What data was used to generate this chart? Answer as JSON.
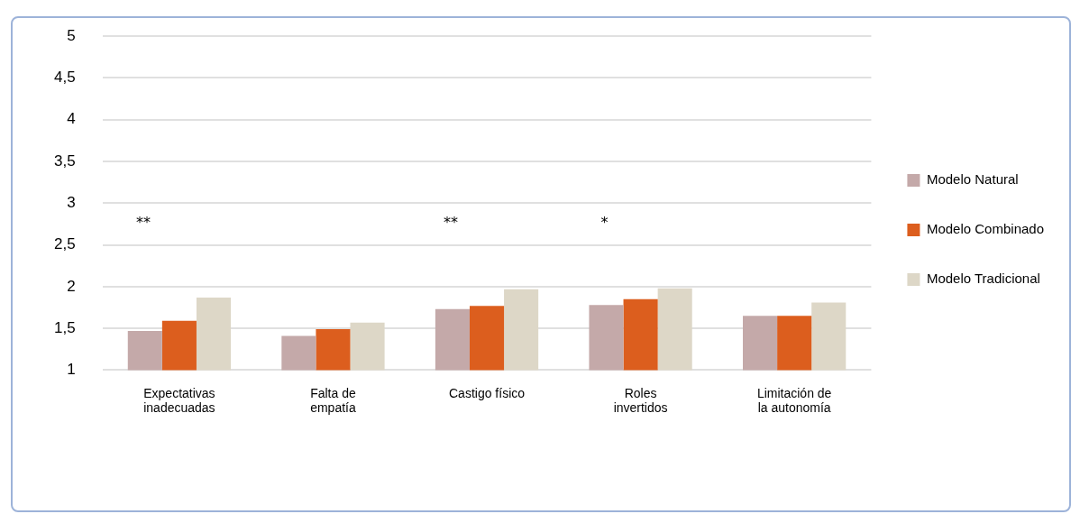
{
  "chart_data": {
    "type": "bar",
    "categories": [
      "Expectativas inadecuadas",
      "Falta de empatía",
      "Castigo físico",
      "Roles invertidos",
      "Limitación de la autonomía"
    ],
    "series": [
      {
        "name": "Modelo Natural",
        "color": "#c4a9a9",
        "values": [
          1.47,
          1.41,
          1.73,
          1.78,
          1.65
        ]
      },
      {
        "name": "Modelo Combinado",
        "color": "#dc5e1e",
        "values": [
          1.59,
          1.49,
          1.77,
          1.85,
          1.65
        ]
      },
      {
        "name": "Modelo Tradicional",
        "color": "#ddd7c7",
        "values": [
          1.87,
          1.57,
          1.97,
          1.98,
          1.81
        ]
      }
    ],
    "ylim": [
      1,
      5
    ],
    "yticks": [
      1,
      {
        "value": 1.5,
        "label": "1,5"
      },
      2,
      {
        "value": 2.5,
        "label": "2,5"
      },
      3,
      {
        "value": 3.5,
        "label": "3,5"
      },
      4,
      {
        "value": 4.5,
        "label": "4,5"
      },
      5
    ],
    "grid": "y",
    "legend": "right",
    "annotations": [
      "**",
      "**",
      "*"
    ]
  }
}
